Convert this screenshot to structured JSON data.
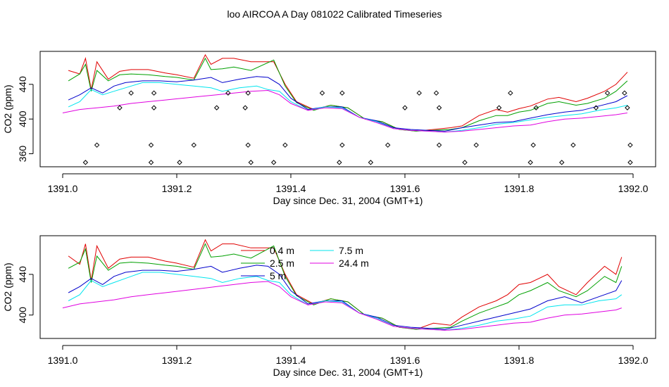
{
  "title": "loo AIRCOA A  Day 081022  Calibrated Timeseries",
  "colors": {
    "s04": "#e00000",
    "s25": "#00a000",
    "s5": "#0000cc",
    "s75": "#00e5ee",
    "s244": "#e000e0",
    "axis": "#000000"
  },
  "chart_data": [
    {
      "type": "line",
      "xlabel": "Day since Dec. 31, 2004 (GMT+1)",
      "ylabel": "CO2 (ppm)",
      "xlim": [
        1391.0,
        1392.0
      ],
      "ylim": [
        345,
        478
      ],
      "x_ticks": [
        "1391.0",
        "1391.2",
        "1391.4",
        "1391.6",
        "1391.8",
        "1392.0"
      ],
      "y_ticks": [
        "360",
        "400",
        "440"
      ],
      "legend": "none",
      "series": [
        {
          "key": "s04",
          "x": [
            1391.01,
            1391.03,
            1391.04,
            1391.05,
            1391.06,
            1391.08,
            1391.1,
            1391.12,
            1391.15,
            1391.18,
            1391.2,
            1391.23,
            1391.25,
            1391.26,
            1391.28,
            1391.3,
            1391.33,
            1391.37,
            1391.39,
            1391.41,
            1391.44,
            1391.47,
            1391.5,
            1391.53,
            1391.56,
            1391.59,
            1391.62,
            1391.65,
            1391.68,
            1391.7,
            1391.73,
            1391.76,
            1391.78,
            1391.8,
            1391.82,
            1391.85,
            1391.87,
            1391.9,
            1391.92,
            1391.95,
            1391.97,
            1391.99
          ],
          "y": [
            456,
            452,
            470,
            434,
            466,
            446,
            455,
            457,
            457,
            453,
            451,
            447,
            474,
            463,
            470,
            470,
            466,
            466,
            440,
            420,
            411,
            416,
            413,
            400,
            397,
            388,
            386,
            388,
            390,
            392,
            404,
            411,
            408,
            412,
            415,
            423,
            425,
            420,
            424,
            432,
            440,
            454
          ]
        },
        {
          "key": "s25",
          "x": [
            1391.01,
            1391.03,
            1391.04,
            1391.05,
            1391.06,
            1391.08,
            1391.1,
            1391.12,
            1391.15,
            1391.18,
            1391.2,
            1391.23,
            1391.25,
            1391.26,
            1391.28,
            1391.3,
            1391.33,
            1391.37,
            1391.39,
            1391.41,
            1391.44,
            1391.47,
            1391.5,
            1391.53,
            1391.56,
            1391.59,
            1391.62,
            1391.65,
            1391.68,
            1391.7,
            1391.73,
            1391.76,
            1391.78,
            1391.8,
            1391.82,
            1391.85,
            1391.87,
            1391.9,
            1391.92,
            1391.95,
            1391.97,
            1391.99
          ],
          "y": [
            444,
            452,
            463,
            432,
            456,
            444,
            451,
            452,
            451,
            449,
            448,
            445,
            470,
            457,
            458,
            460,
            456,
            468,
            438,
            419,
            410,
            416,
            413,
            400,
            397,
            388,
            386,
            387,
            388,
            390,
            398,
            404,
            404,
            408,
            410,
            418,
            420,
            416,
            418,
            424,
            432,
            444
          ]
        },
        {
          "key": "s5",
          "x": [
            1391.01,
            1391.03,
            1391.05,
            1391.07,
            1391.09,
            1391.11,
            1391.14,
            1391.17,
            1391.2,
            1391.23,
            1391.26,
            1391.28,
            1391.31,
            1391.34,
            1391.36,
            1391.38,
            1391.4,
            1391.43,
            1391.46,
            1391.49,
            1391.52,
            1391.55,
            1391.58,
            1391.61,
            1391.64,
            1391.67,
            1391.7,
            1391.73,
            1391.76,
            1391.79,
            1391.82,
            1391.85,
            1391.88,
            1391.91,
            1391.94,
            1391.97,
            1391.99
          ],
          "y": [
            422,
            428,
            436,
            430,
            438,
            442,
            444,
            444,
            443,
            445,
            448,
            442,
            446,
            449,
            448,
            440,
            424,
            411,
            414,
            414,
            402,
            398,
            390,
            388,
            387,
            386,
            390,
            393,
            396,
            397,
            401,
            405,
            408,
            410,
            415,
            420,
            427
          ]
        },
        {
          "key": "s75",
          "x": [
            1391.01,
            1391.03,
            1391.05,
            1391.07,
            1391.09,
            1391.11,
            1391.14,
            1391.17,
            1391.2,
            1391.23,
            1391.26,
            1391.28,
            1391.31,
            1391.34,
            1391.36,
            1391.38,
            1391.4,
            1391.43,
            1391.46,
            1391.49,
            1391.52,
            1391.55,
            1391.58,
            1391.61,
            1391.64,
            1391.67,
            1391.7,
            1391.73,
            1391.76,
            1391.79,
            1391.82,
            1391.85,
            1391.88,
            1391.91,
            1391.94,
            1391.97,
            1391.99
          ],
          "y": [
            414,
            420,
            434,
            428,
            432,
            436,
            442,
            442,
            440,
            438,
            436,
            432,
            436,
            438,
            434,
            432,
            420,
            410,
            414,
            413,
            402,
            397,
            389,
            387,
            386,
            385,
            387,
            390,
            394,
            396,
            399,
            402,
            404,
            406,
            410,
            413,
            416
          ]
        },
        {
          "key": "s244",
          "x": [
            1391.0,
            1391.03,
            1391.06,
            1391.09,
            1391.12,
            1391.15,
            1391.18,
            1391.21,
            1391.24,
            1391.27,
            1391.3,
            1391.33,
            1391.36,
            1391.38,
            1391.4,
            1391.43,
            1391.46,
            1391.49,
            1391.52,
            1391.55,
            1391.58,
            1391.61,
            1391.64,
            1391.67,
            1391.7,
            1391.73,
            1391.76,
            1391.79,
            1391.82,
            1391.85,
            1391.88,
            1391.91,
            1391.94,
            1391.97,
            1391.99
          ],
          "y": [
            407,
            411,
            413,
            415,
            418,
            420,
            422,
            424,
            426,
            428,
            430,
            432,
            433,
            428,
            418,
            410,
            413,
            412,
            402,
            396,
            389,
            387,
            386,
            385,
            386,
            388,
            390,
            392,
            393,
            397,
            400,
            401,
            403,
            405,
            407
          ]
        }
      ],
      "scatter": {
        "x": [
          1391.04,
          1391.06,
          1391.1,
          1391.12,
          1391.155,
          1391.155,
          1391.16,
          1391.16,
          1391.205,
          1391.23,
          1391.27,
          1391.29,
          1391.32,
          1391.325,
          1391.325,
          1391.33,
          1391.37,
          1391.39,
          1391.455,
          1391.485,
          1391.49,
          1391.49,
          1391.54,
          1391.57,
          1391.6,
          1391.625,
          1391.655,
          1391.66,
          1391.66,
          1391.705,
          1391.725,
          1391.765,
          1391.785,
          1391.82,
          1391.825,
          1391.83,
          1391.875,
          1391.895,
          1391.935,
          1391.955,
          1391.985,
          1391.99,
          1391.995,
          1391.995
        ],
        "y": [
          350,
          370,
          413,
          430,
          350,
          370,
          413,
          430,
          350,
          370,
          413,
          430,
          413,
          430,
          370,
          350,
          350,
          370,
          430,
          350,
          370,
          430,
          350,
          370,
          413,
          430,
          430,
          413,
          370,
          350,
          370,
          413,
          430,
          350,
          370,
          413,
          350,
          370,
          413,
          430,
          430,
          413,
          370,
          350
        ]
      }
    },
    {
      "type": "line",
      "xlabel": "Day since Dec. 31, 2004 (GMT+1)",
      "ylabel": "CO2 (ppm)",
      "xlim": [
        1391.0,
        1392.0
      ],
      "ylim": [
        377,
        478
      ],
      "x_ticks": [
        "1391.0",
        "1391.2",
        "1391.4",
        "1391.6",
        "1391.8",
        "1392.0"
      ],
      "y_ticks": [
        "400",
        "440"
      ],
      "legend": "top-center",
      "series": [
        {
          "key": "s04",
          "name": "0.4 m",
          "x": [
            1391.01,
            1391.03,
            1391.04,
            1391.05,
            1391.06,
            1391.08,
            1391.1,
            1391.12,
            1391.15,
            1391.18,
            1391.2,
            1391.23,
            1391.25,
            1391.26,
            1391.28,
            1391.3,
            1391.33,
            1391.37,
            1391.39,
            1391.41,
            1391.44,
            1391.47,
            1391.5,
            1391.53,
            1391.56,
            1391.59,
            1391.62,
            1391.65,
            1391.68,
            1391.7,
            1391.73,
            1391.76,
            1391.78,
            1391.8,
            1391.82,
            1391.85,
            1391.87,
            1391.9,
            1391.92,
            1391.95,
            1391.97,
            1391.98
          ],
          "y": [
            458,
            450,
            470,
            434,
            468,
            446,
            455,
            457,
            457,
            453,
            451,
            447,
            474,
            463,
            470,
            470,
            466,
            466,
            440,
            420,
            411,
            416,
            413,
            400,
            397,
            388,
            386,
            392,
            390,
            398,
            408,
            414,
            420,
            430,
            432,
            440,
            428,
            420,
            432,
            448,
            440,
            457
          ]
        },
        {
          "key": "s25",
          "name": "2.5 m",
          "x": [
            1391.01,
            1391.03,
            1391.04,
            1391.05,
            1391.06,
            1391.08,
            1391.1,
            1391.12,
            1391.15,
            1391.18,
            1391.2,
            1391.23,
            1391.25,
            1391.26,
            1391.28,
            1391.3,
            1391.33,
            1391.37,
            1391.39,
            1391.41,
            1391.44,
            1391.47,
            1391.5,
            1391.53,
            1391.56,
            1391.59,
            1391.62,
            1391.65,
            1391.68,
            1391.7,
            1391.73,
            1391.76,
            1391.78,
            1391.8,
            1391.82,
            1391.85,
            1391.87,
            1391.9,
            1391.92,
            1391.95,
            1391.97,
            1391.98
          ],
          "y": [
            446,
            452,
            465,
            432,
            458,
            444,
            451,
            452,
            451,
            449,
            448,
            445,
            470,
            457,
            458,
            460,
            456,
            468,
            438,
            419,
            410,
            416,
            413,
            400,
            397,
            388,
            386,
            387,
            388,
            394,
            402,
            408,
            412,
            420,
            424,
            432,
            424,
            418,
            424,
            438,
            432,
            448
          ]
        },
        {
          "key": "s5",
          "name": "5 m",
          "x": [
            1391.01,
            1391.03,
            1391.05,
            1391.07,
            1391.09,
            1391.11,
            1391.14,
            1391.17,
            1391.2,
            1391.23,
            1391.26,
            1391.28,
            1391.31,
            1391.34,
            1391.36,
            1391.38,
            1391.4,
            1391.43,
            1391.46,
            1391.49,
            1391.52,
            1391.55,
            1391.58,
            1391.61,
            1391.64,
            1391.67,
            1391.7,
            1391.73,
            1391.76,
            1391.79,
            1391.82,
            1391.85,
            1391.88,
            1391.91,
            1391.94,
            1391.97,
            1391.98
          ],
          "y": [
            422,
            428,
            436,
            430,
            438,
            442,
            444,
            444,
            443,
            445,
            448,
            442,
            446,
            449,
            448,
            440,
            424,
            411,
            414,
            414,
            402,
            398,
            390,
            388,
            387,
            386,
            390,
            394,
            398,
            402,
            406,
            414,
            418,
            412,
            418,
            424,
            434
          ]
        },
        {
          "key": "s75",
          "name": "7.5 m",
          "x": [
            1391.01,
            1391.03,
            1391.05,
            1391.07,
            1391.09,
            1391.11,
            1391.14,
            1391.17,
            1391.2,
            1391.23,
            1391.26,
            1391.28,
            1391.31,
            1391.34,
            1391.36,
            1391.38,
            1391.4,
            1391.43,
            1391.46,
            1391.49,
            1391.52,
            1391.55,
            1391.58,
            1391.61,
            1391.64,
            1391.67,
            1391.7,
            1391.73,
            1391.76,
            1391.79,
            1391.82,
            1391.85,
            1391.88,
            1391.91,
            1391.94,
            1391.97,
            1391.98
          ],
          "y": [
            414,
            420,
            434,
            428,
            432,
            436,
            442,
            442,
            440,
            438,
            436,
            432,
            436,
            438,
            434,
            432,
            420,
            410,
            414,
            413,
            402,
            397,
            389,
            387,
            386,
            385,
            387,
            390,
            394,
            396,
            399,
            408,
            410,
            410,
            414,
            416,
            420
          ]
        },
        {
          "key": "s244",
          "name": "24.4 m",
          "x": [
            1391.0,
            1391.03,
            1391.06,
            1391.09,
            1391.12,
            1391.15,
            1391.18,
            1391.21,
            1391.24,
            1391.27,
            1391.3,
            1391.33,
            1391.36,
            1391.38,
            1391.4,
            1391.43,
            1391.46,
            1391.49,
            1391.52,
            1391.55,
            1391.58,
            1391.61,
            1391.64,
            1391.67,
            1391.7,
            1391.73,
            1391.76,
            1391.79,
            1391.82,
            1391.85,
            1391.88,
            1391.91,
            1391.94,
            1391.97,
            1391.98
          ],
          "y": [
            407,
            411,
            413,
            415,
            418,
            420,
            422,
            424,
            426,
            428,
            430,
            432,
            433,
            428,
            418,
            410,
            413,
            412,
            402,
            396,
            389,
            387,
            386,
            385,
            386,
            388,
            390,
            392,
            393,
            397,
            400,
            401,
            403,
            405,
            407
          ]
        }
      ]
    }
  ]
}
